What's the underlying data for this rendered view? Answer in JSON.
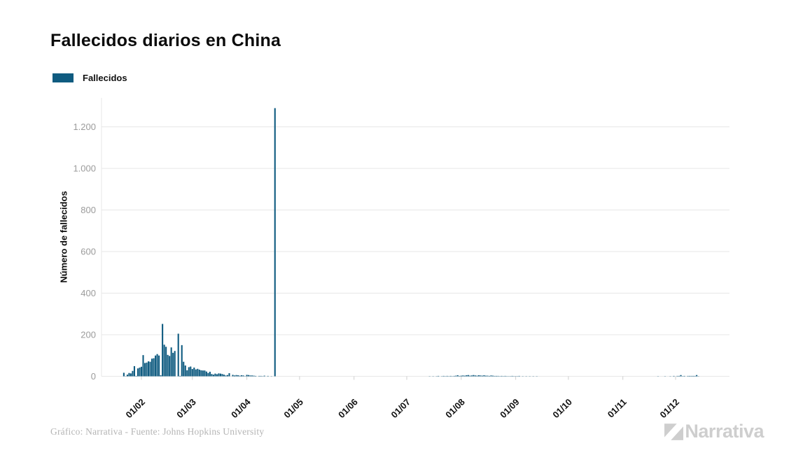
{
  "page": {
    "title": "Fallecidos diarios en China",
    "background": "#ffffff"
  },
  "legend": {
    "label": "Fallecidos",
    "swatch_color": "#0f5b80"
  },
  "footer": {
    "credit": "Gráfico: Narrativa - Fuente: Johns Hopkins University",
    "brand": "Narrativa"
  },
  "colors": {
    "bar": "#0f5b80",
    "grid": "#e7e7e7",
    "tick": "#cfcfcf",
    "axis_label": "#9b9b9b",
    "text": "#111111",
    "brand_gray": "#cecece"
  },
  "chart_data": {
    "type": "bar",
    "title": "Fallecidos diarios en China",
    "xlabel": "",
    "ylabel": "Número de fallecidos",
    "series_name": "Fallecidos",
    "grid": true,
    "legend_position": "top-left",
    "ylim": [
      0,
      1300
    ],
    "yticks": [
      0,
      200,
      400,
      600,
      800,
      1000,
      1200
    ],
    "ytick_labels": [
      "0",
      "200",
      "400",
      "600",
      "800",
      "1.000",
      "1.200"
    ],
    "x_range": [
      "2020-01-22",
      "2020-12-31"
    ],
    "xticks": [
      {
        "date": "2020-02-01",
        "label": "01/02"
      },
      {
        "date": "2020-03-01",
        "label": "01/03"
      },
      {
        "date": "2020-04-01",
        "label": "01/04"
      },
      {
        "date": "2020-05-01",
        "label": "01/05"
      },
      {
        "date": "2020-06-01",
        "label": "01/06"
      },
      {
        "date": "2020-07-01",
        "label": "01/07"
      },
      {
        "date": "2020-08-01",
        "label": "01/08"
      },
      {
        "date": "2020-09-01",
        "label": "01/09"
      },
      {
        "date": "2020-10-01",
        "label": "01/10"
      },
      {
        "date": "2020-11-01",
        "label": "01/11"
      },
      {
        "date": "2020-12-01",
        "label": "01/12"
      }
    ],
    "points": [
      [
        "2020-01-22",
        17
      ],
      [
        "2020-01-23",
        1
      ],
      [
        "2020-01-24",
        8
      ],
      [
        "2020-01-25",
        16
      ],
      [
        "2020-01-26",
        14
      ],
      [
        "2020-01-27",
        26
      ],
      [
        "2020-01-28",
        49
      ],
      [
        "2020-01-29",
        2
      ],
      [
        "2020-01-30",
        38
      ],
      [
        "2020-01-31",
        42
      ],
      [
        "2020-02-01",
        46
      ],
      [
        "2020-02-02",
        102
      ],
      [
        "2020-02-03",
        64
      ],
      [
        "2020-02-04",
        66
      ],
      [
        "2020-02-05",
        72
      ],
      [
        "2020-02-06",
        70
      ],
      [
        "2020-02-07",
        85
      ],
      [
        "2020-02-08",
        87
      ],
      [
        "2020-02-09",
        100
      ],
      [
        "2020-02-10",
        107
      ],
      [
        "2020-02-11",
        100
      ],
      [
        "2020-02-12",
        5
      ],
      [
        "2020-02-13",
        252
      ],
      [
        "2020-02-14",
        152
      ],
      [
        "2020-02-15",
        142
      ],
      [
        "2020-02-16",
        103
      ],
      [
        "2020-02-17",
        98
      ],
      [
        "2020-02-18",
        139
      ],
      [
        "2020-02-19",
        113
      ],
      [
        "2020-02-20",
        122
      ],
      [
        "2020-02-22",
        205
      ],
      [
        "2020-02-23",
        2
      ],
      [
        "2020-02-24",
        150
      ],
      [
        "2020-02-25",
        70
      ],
      [
        "2020-02-26",
        52
      ],
      [
        "2020-02-27",
        29
      ],
      [
        "2020-02-28",
        44
      ],
      [
        "2020-02-29",
        47
      ],
      [
        "2020-03-01",
        35
      ],
      [
        "2020-03-02",
        42
      ],
      [
        "2020-03-03",
        33
      ],
      [
        "2020-03-04",
        36
      ],
      [
        "2020-03-05",
        32
      ],
      [
        "2020-03-06",
        29
      ],
      [
        "2020-03-07",
        28
      ],
      [
        "2020-03-08",
        28
      ],
      [
        "2020-03-09",
        23
      ],
      [
        "2020-03-10",
        16
      ],
      [
        "2020-03-11",
        22
      ],
      [
        "2020-03-12",
        11
      ],
      [
        "2020-03-13",
        8
      ],
      [
        "2020-03-14",
        13
      ],
      [
        "2020-03-15",
        10
      ],
      [
        "2020-03-16",
        14
      ],
      [
        "2020-03-17",
        13
      ],
      [
        "2020-03-18",
        11
      ],
      [
        "2020-03-19",
        8
      ],
      [
        "2020-03-20",
        4
      ],
      [
        "2020-03-21",
        6
      ],
      [
        "2020-03-22",
        15
      ],
      [
        "2020-03-24",
        7
      ],
      [
        "2020-03-25",
        4
      ],
      [
        "2020-03-26",
        6
      ],
      [
        "2020-03-27",
        5
      ],
      [
        "2020-03-28",
        3
      ],
      [
        "2020-03-29",
        5
      ],
      [
        "2020-03-30",
        4
      ],
      [
        "2020-03-31",
        1
      ],
      [
        "2020-04-01",
        7
      ],
      [
        "2020-04-02",
        6
      ],
      [
        "2020-04-03",
        4
      ],
      [
        "2020-04-04",
        4
      ],
      [
        "2020-04-05",
        3
      ],
      [
        "2020-04-06",
        2
      ],
      [
        "2020-04-08",
        2
      ],
      [
        "2020-04-09",
        2
      ],
      [
        "2020-04-10",
        1
      ],
      [
        "2020-04-11",
        3
      ],
      [
        "2020-04-13",
        2
      ],
      [
        "2020-04-15",
        1
      ],
      [
        "2020-04-17",
        1290
      ],
      [
        "2020-07-14",
        1
      ],
      [
        "2020-07-16",
        1
      ],
      [
        "2020-07-18",
        1
      ],
      [
        "2020-07-19",
        2
      ],
      [
        "2020-07-21",
        1
      ],
      [
        "2020-07-22",
        2
      ],
      [
        "2020-07-23",
        1
      ],
      [
        "2020-07-24",
        2
      ],
      [
        "2020-07-25",
        1
      ],
      [
        "2020-07-26",
        2
      ],
      [
        "2020-07-27",
        1
      ],
      [
        "2020-07-28",
        2
      ],
      [
        "2020-07-29",
        3
      ],
      [
        "2020-07-30",
        5
      ],
      [
        "2020-07-31",
        2
      ],
      [
        "2020-08-01",
        3
      ],
      [
        "2020-08-02",
        4
      ],
      [
        "2020-08-03",
        3
      ],
      [
        "2020-08-04",
        5
      ],
      [
        "2020-08-05",
        6
      ],
      [
        "2020-08-06",
        3
      ],
      [
        "2020-08-07",
        4
      ],
      [
        "2020-08-08",
        6
      ],
      [
        "2020-08-09",
        4
      ],
      [
        "2020-08-10",
        3
      ],
      [
        "2020-08-11",
        5
      ],
      [
        "2020-08-12",
        4
      ],
      [
        "2020-08-13",
        3
      ],
      [
        "2020-08-14",
        5
      ],
      [
        "2020-08-15",
        3
      ],
      [
        "2020-08-16",
        3
      ],
      [
        "2020-08-17",
        2
      ],
      [
        "2020-08-18",
        4
      ],
      [
        "2020-08-19",
        3
      ],
      [
        "2020-08-20",
        2
      ],
      [
        "2020-08-21",
        2
      ],
      [
        "2020-08-22",
        2
      ],
      [
        "2020-08-23",
        1
      ],
      [
        "2020-08-24",
        2
      ],
      [
        "2020-08-25",
        1
      ],
      [
        "2020-08-26",
        2
      ],
      [
        "2020-08-27",
        1
      ],
      [
        "2020-08-28",
        1
      ],
      [
        "2020-08-29",
        1
      ],
      [
        "2020-08-30",
        2
      ],
      [
        "2020-08-31",
        1
      ],
      [
        "2020-09-01",
        1
      ],
      [
        "2020-09-02",
        1
      ],
      [
        "2020-09-03",
        2
      ],
      [
        "2020-09-05",
        1
      ],
      [
        "2020-09-07",
        1
      ],
      [
        "2020-09-09",
        1
      ],
      [
        "2020-09-11",
        1
      ],
      [
        "2020-09-13",
        1
      ],
      [
        "2020-11-21",
        1
      ],
      [
        "2020-11-25",
        1
      ],
      [
        "2020-11-28",
        1
      ],
      [
        "2020-11-30",
        2
      ],
      [
        "2020-12-02",
        2
      ],
      [
        "2020-12-03",
        2
      ],
      [
        "2020-12-04",
        6
      ],
      [
        "2020-12-05",
        1
      ],
      [
        "2020-12-06",
        2
      ],
      [
        "2020-12-08",
        2
      ],
      [
        "2020-12-09",
        2
      ],
      [
        "2020-12-10",
        2
      ],
      [
        "2020-12-11",
        2
      ],
      [
        "2020-12-12",
        2
      ],
      [
        "2020-12-13",
        6
      ],
      [
        "2020-12-14",
        1
      ]
    ]
  }
}
